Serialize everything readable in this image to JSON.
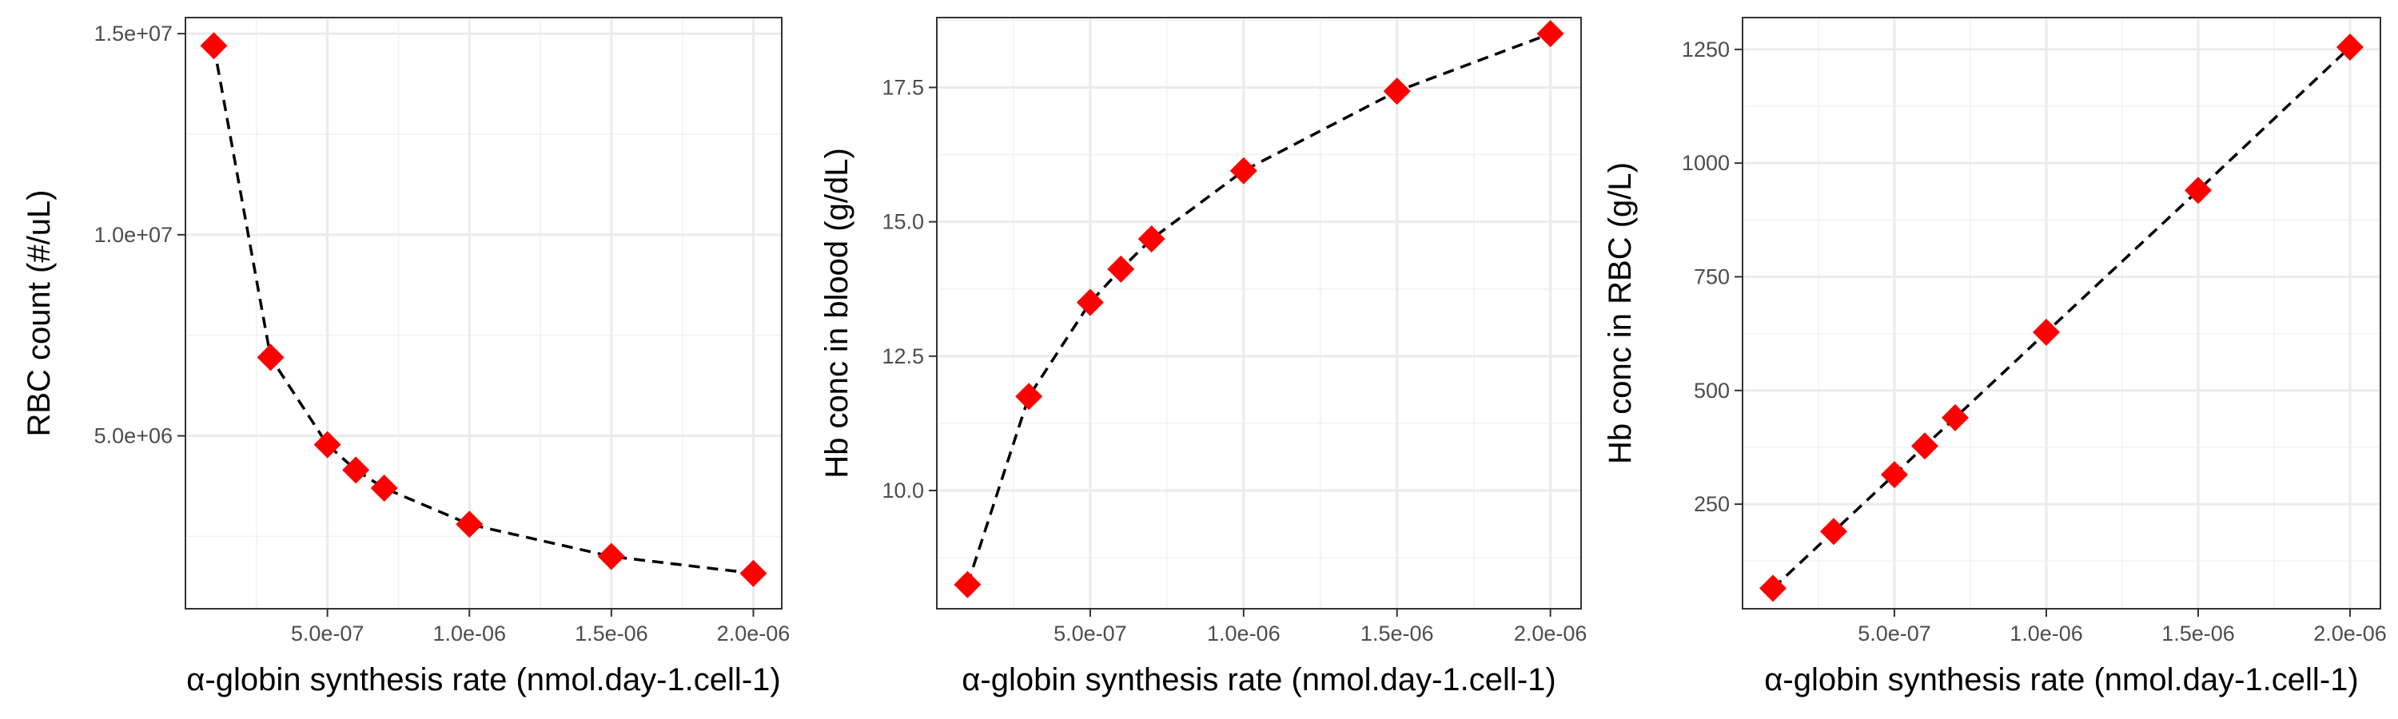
{
  "chart_data": [
    {
      "type": "line",
      "xlabel": "α-globin synthesis rate (nmol.day-1.cell-1)",
      "ylabel": "RBC count (#/uL)",
      "xlim": [
        0,
        2.1e-06
      ],
      "ylim": [
        700000,
        15400000
      ],
      "xticks": [
        5e-07,
        1e-06,
        1.5e-06,
        2e-06
      ],
      "xtick_labels": [
        "5.0e-07",
        "1.0e-06",
        "1.5e-06",
        "2.0e-06"
      ],
      "yticks": [
        5000000,
        10000000,
        15000000
      ],
      "ytick_labels": [
        "5.0e+06",
        "1.0e+07",
        "1.5e+07"
      ],
      "grid": true,
      "series": [
        {
          "x": [
            1e-07,
            3e-07,
            5e-07,
            6e-07,
            7e-07,
            1e-06,
            1.5e-06,
            2e-06
          ],
          "y": [
            14700000,
            6950000,
            4780000,
            4150000,
            3700000,
            2800000,
            2000000,
            1580000
          ],
          "marker": "diamond",
          "marker_color": "#ff0000",
          "line_style": "dashed",
          "line_color": "#000000"
        }
      ]
    },
    {
      "type": "line",
      "xlabel": "α-globin synthesis rate (nmol.day-1.cell-1)",
      "ylabel": "Hb conc in blood (g/dL)",
      "xlim": [
        0,
        2.1e-06
      ],
      "ylim": [
        7.8,
        18.8
      ],
      "xticks": [
        5e-07,
        1e-06,
        1.5e-06,
        2e-06
      ],
      "xtick_labels": [
        "5.0e-07",
        "1.0e-06",
        "1.5e-06",
        "2.0e-06"
      ],
      "yticks": [
        10,
        12.5,
        15,
        17.5
      ],
      "ytick_labels": [
        "10.0",
        "12.5",
        "15.0",
        "17.5"
      ],
      "grid": true,
      "series": [
        {
          "x": [
            1e-07,
            3e-07,
            5e-07,
            6e-07,
            7e-07,
            1e-06,
            1.5e-06,
            2e-06
          ],
          "y": [
            8.25,
            11.75,
            13.5,
            14.12,
            14.68,
            15.95,
            17.43,
            18.5
          ],
          "marker": "diamond",
          "marker_color": "#ff0000",
          "line_style": "dashed",
          "line_color": "#000000"
        }
      ]
    },
    {
      "type": "line",
      "xlabel": "α-globin synthesis rate (nmol.day-1.cell-1)",
      "ylabel": "Hb conc in RBC (g/L)",
      "xlim": [
        0,
        2.1e-06
      ],
      "ylim": [
        20,
        1320
      ],
      "xticks": [
        5e-07,
        1e-06,
        1.5e-06,
        2e-06
      ],
      "xtick_labels": [
        "5.0e-07",
        "1.0e-06",
        "1.5e-06",
        "2.0e-06"
      ],
      "yticks": [
        250,
        500,
        750,
        1000,
        1250
      ],
      "ytick_labels": [
        "250",
        "500",
        "750",
        "1000",
        "1250"
      ],
      "grid": true,
      "series": [
        {
          "x": [
            1e-07,
            3e-07,
            5e-07,
            6e-07,
            7e-07,
            1e-06,
            1.5e-06,
            2e-06
          ],
          "y": [
            65,
            190,
            315,
            378,
            440,
            628,
            940,
            1255
          ],
          "marker": "diamond",
          "marker_color": "#ff0000",
          "line_style": "dashed",
          "line_color": "#000000"
        }
      ]
    }
  ]
}
